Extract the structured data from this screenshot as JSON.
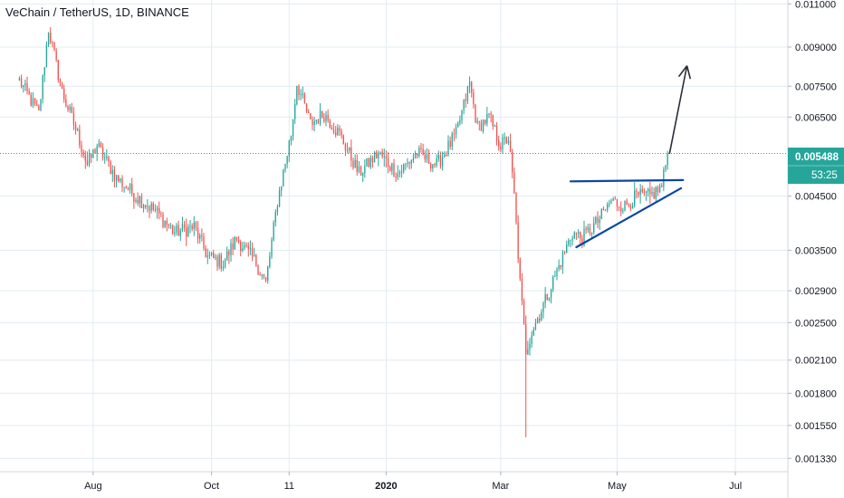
{
  "colors": {
    "up": "#26a69a",
    "down": "#ef5350",
    "grid": "#e1ecf2",
    "trendline": "#0d47a1",
    "arrow": "#2a2e39",
    "price_line": "#26a69a",
    "price_badge": "#26a69a"
  },
  "chart_data": {
    "type": "candlestick",
    "title": "VeChain / TetherUS, 1D, BINANCE",
    "yscale": "log",
    "ylim": [
      0.00125,
      0.0112
    ],
    "y_ticks": [
      "0.011000",
      "0.009000",
      "0.007500",
      "0.006500",
      "0.004500",
      "0.003500",
      "0.002900",
      "0.002500",
      "0.002100",
      "0.001800",
      "0.001550",
      "0.001330"
    ],
    "x_ticks": [
      {
        "label": "Aug",
        "index": 38,
        "bold": false
      },
      {
        "label": "Oct",
        "index": 99,
        "bold": false
      },
      {
        "label": "11",
        "index": 139,
        "bold": false
      },
      {
        "label": "2020",
        "index": 189,
        "bold": true
      },
      {
        "label": "Mar",
        "index": 248,
        "bold": false
      },
      {
        "label": "May",
        "index": 308,
        "bold": false
      },
      {
        "label": "Jul",
        "index": 369,
        "bold": false
      }
    ],
    "x_range": [
      -10,
      396
    ],
    "current_price": "0.005488",
    "countdown": "53:25",
    "anchors": [
      [
        0,
        0.0077
      ],
      [
        10,
        0.0066
      ],
      [
        15,
        0.0098
      ],
      [
        22,
        0.0073
      ],
      [
        30,
        0.006
      ],
      [
        35,
        0.0052
      ],
      [
        40,
        0.0057
      ],
      [
        50,
        0.0049
      ],
      [
        60,
        0.0045
      ],
      [
        70,
        0.0042
      ],
      [
        80,
        0.0038
      ],
      [
        90,
        0.0039
      ],
      [
        97,
        0.0034
      ],
      [
        105,
        0.0033
      ],
      [
        112,
        0.0037
      ],
      [
        122,
        0.0033
      ],
      [
        127,
        0.003
      ],
      [
        133,
        0.0044
      ],
      [
        140,
        0.006
      ],
      [
        143,
        0.0076
      ],
      [
        150,
        0.0063
      ],
      [
        157,
        0.0066
      ],
      [
        165,
        0.006
      ],
      [
        175,
        0.005
      ],
      [
        185,
        0.0055
      ],
      [
        195,
        0.005
      ],
      [
        205,
        0.0055
      ],
      [
        215,
        0.0052
      ],
      [
        225,
        0.006
      ],
      [
        232,
        0.0076
      ],
      [
        236,
        0.0062
      ],
      [
        242,
        0.0065
      ],
      [
        248,
        0.0057
      ],
      [
        252,
        0.0059
      ],
      [
        255,
        0.0045
      ],
      [
        258,
        0.003
      ],
      [
        261,
        0.0022
      ],
      [
        264,
        0.0024
      ],
      [
        268,
        0.0026
      ],
      [
        273,
        0.0029
      ],
      [
        280,
        0.0034
      ],
      [
        285,
        0.0038
      ],
      [
        290,
        0.0037
      ],
      [
        298,
        0.004
      ],
      [
        305,
        0.0044
      ],
      [
        312,
        0.0043
      ],
      [
        318,
        0.0045
      ],
      [
        325,
        0.0045
      ],
      [
        331,
        0.0047
      ],
      [
        334,
        0.00548
      ]
    ],
    "annotations": [
      {
        "type": "line",
        "from": [
          284,
          0.00482
        ],
        "to": [
          342,
          0.00485
        ],
        "color": "trendline"
      },
      {
        "type": "line",
        "from": [
          287,
          0.00355
        ],
        "to": [
          341,
          0.00467
        ],
        "color": "trendline"
      },
      {
        "type": "arrow",
        "from": [
          335,
          0.00548
        ],
        "to": [
          344,
          0.00825
        ],
        "color": "arrow"
      }
    ]
  }
}
